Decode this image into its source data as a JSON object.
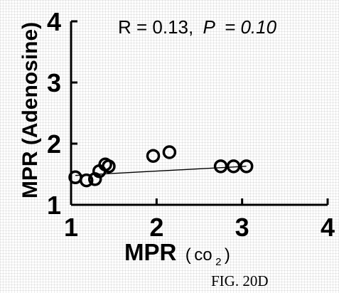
{
  "chart_data": {
    "type": "scatter",
    "title": "",
    "xlabel_main": "MPR",
    "xlabel_paren_open": "(",
    "xlabel_unit": "co",
    "xlabel_subscript": "2",
    "xlabel_paren_close": ")",
    "ylabel": "MPR (Adenosine)",
    "xlim": [
      1,
      4
    ],
    "ylim": [
      1,
      4
    ],
    "xticks": [
      "1",
      "2",
      "3",
      "4"
    ],
    "yticks": [
      "1",
      "2",
      "3",
      "4"
    ],
    "annotation": {
      "r_text": "R = 0.13,",
      "p_symbol": "P",
      "p_text": "= 0.10"
    },
    "points": [
      {
        "x": 1.05,
        "y": 1.45
      },
      {
        "x": 1.18,
        "y": 1.4
      },
      {
        "x": 1.28,
        "y": 1.42
      },
      {
        "x": 1.33,
        "y": 1.55
      },
      {
        "x": 1.4,
        "y": 1.66
      },
      {
        "x": 1.44,
        "y": 1.63
      },
      {
        "x": 1.96,
        "y": 1.8
      },
      {
        "x": 2.15,
        "y": 1.86
      },
      {
        "x": 2.75,
        "y": 1.63
      },
      {
        "x": 2.9,
        "y": 1.63
      },
      {
        "x": 3.05,
        "y": 1.63
      }
    ],
    "trendline": {
      "x": [
        1.05,
        3.05
      ],
      "y": [
        1.48,
        1.63
      ]
    },
    "grid": false,
    "legend": "none"
  },
  "caption": "FIG. 20D"
}
